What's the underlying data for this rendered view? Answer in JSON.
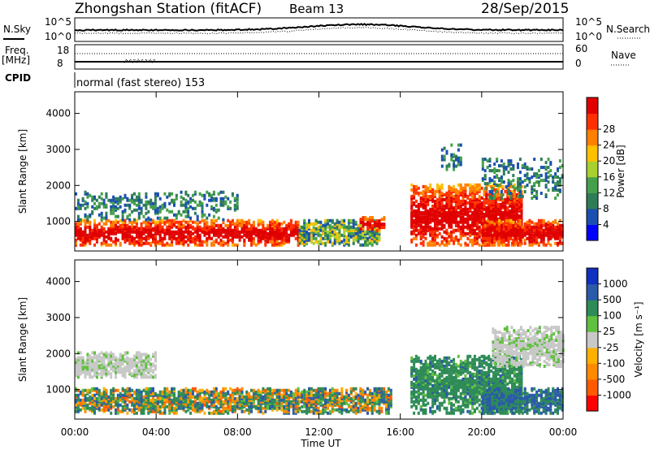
{
  "header": {
    "station": "Zhongshan Station (fitACF)",
    "beam": "Beam 13",
    "date": "28/Sep/2015"
  },
  "top_panels": {
    "nsky_label": "N.Sky",
    "nsearch_label": "N.Search",
    "freq_label_1": "Freq.",
    "freq_label_2": "[MHz]",
    "nave_label": "Nave",
    "cpid_label": "CPID",
    "cpid_value": "normal (fast stereo) 153",
    "noise_left_ticks": [
      "10^5",
      "10^0"
    ],
    "noise_right_ticks": [
      "10^5",
      "10^0"
    ],
    "freq_left_ticks": [
      "18",
      "8"
    ],
    "freq_right_ticks": [
      "60",
      "0"
    ]
  },
  "colors": {
    "power_scale": [
      "#0000ff",
      "#1a4fb0",
      "#2e7d57",
      "#44a04a",
      "#a8d030",
      "#ffc000",
      "#ff8000",
      "#ff3000",
      "#e00000"
    ],
    "velocity_scale": [
      "#ff0000",
      "#ff5a00",
      "#ff8a00",
      "#ffb000",
      "#c8c8c8",
      "#60c040",
      "#2e8b57",
      "#2a5aa8",
      "#1030c0"
    ]
  },
  "chart_data": [
    {
      "type": "heatmap",
      "title": "",
      "ylabel": "Slant Range [km]",
      "ylim": [
        180,
        4600
      ],
      "yticks": [
        1000,
        2000,
        3000,
        4000
      ],
      "xlabel": "",
      "colorbar_label": "Power [dB]",
      "colorbar_ticks": [
        "4",
        "8",
        "12",
        "16",
        "20",
        "24",
        "28"
      ],
      "colorbar_range": [
        0,
        30
      ],
      "echo_regions": [
        {
          "t0": 0.0,
          "t1": 11.0,
          "r0": 300,
          "r1": 1000,
          "level": "strong"
        },
        {
          "t0": 0.0,
          "t1": 8.0,
          "r0": 1000,
          "r1": 1800,
          "level": "weak"
        },
        {
          "t0": 11.0,
          "t1": 15.0,
          "r0": 300,
          "r1": 1000,
          "level": "medium"
        },
        {
          "t0": 14.0,
          "t1": 15.2,
          "r0": 700,
          "r1": 1100,
          "level": "strong"
        },
        {
          "t0": 16.5,
          "t1": 22.0,
          "r0": 300,
          "r1": 2000,
          "level": "strong"
        },
        {
          "t0": 20.0,
          "t1": 24.0,
          "r0": 300,
          "r1": 1000,
          "level": "strong"
        },
        {
          "t0": 20.0,
          "t1": 24.0,
          "r0": 1600,
          "r1": 2700,
          "level": "weak"
        },
        {
          "t0": 18.0,
          "t1": 19.0,
          "r0": 2400,
          "r1": 3100,
          "level": "weak"
        }
      ]
    },
    {
      "type": "heatmap",
      "title": "",
      "ylabel": "Slant Range [km]",
      "ylim": [
        180,
        4600
      ],
      "yticks": [
        1000,
        2000,
        3000,
        4000
      ],
      "xlabel": "Time UT",
      "xticks": [
        "00:00",
        "04:00",
        "08:00",
        "12:00",
        "16:00",
        "20:00",
        "00:00"
      ],
      "colorbar_label": "Velocity [m s⁻¹]",
      "colorbar_ticks": [
        "1000",
        "500",
        "100",
        "25",
        "-25",
        "-100",
        "-500",
        "-1000"
      ],
      "colorbar_range": [
        -1000,
        1000
      ],
      "echo_regions": [
        {
          "t0": 0.0,
          "t1": 11.0,
          "r0": 300,
          "r1": 1000,
          "level": "mixed"
        },
        {
          "t0": 0.0,
          "t1": 4.0,
          "r0": 1300,
          "r1": 2000,
          "level": "gray"
        },
        {
          "t0": 11.0,
          "t1": 15.5,
          "r0": 300,
          "r1": 1000,
          "level": "mixed"
        },
        {
          "t0": 16.5,
          "t1": 22.0,
          "r0": 300,
          "r1": 1900,
          "level": "green"
        },
        {
          "t0": 20.0,
          "t1": 24.0,
          "r0": 300,
          "r1": 1000,
          "level": "blue"
        },
        {
          "t0": 20.5,
          "t1": 24.0,
          "r0": 1600,
          "r1": 2700,
          "level": "gray"
        }
      ]
    }
  ]
}
